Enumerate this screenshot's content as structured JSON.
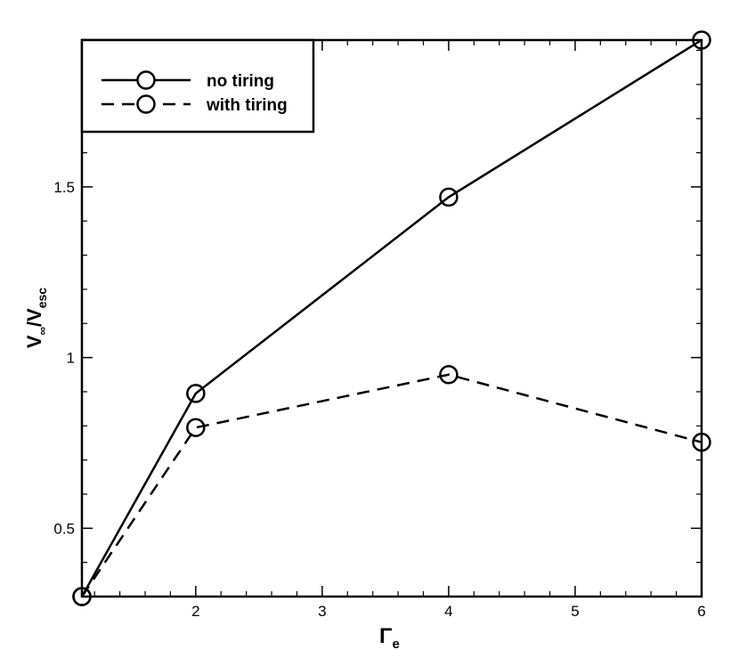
{
  "chart_data": {
    "type": "line",
    "title": "",
    "xlabel": {
      "main": "Γ",
      "sub": "e"
    },
    "ylabel": {
      "part1": "V",
      "sub1": "∞",
      "slash": "/",
      "part2": "V",
      "sub2": "esc"
    },
    "xlim": [
      1.1,
      6
    ],
    "ylim": [
      0.3,
      1.93
    ],
    "grid": false,
    "legend": "top-left",
    "x_ticks": [
      2,
      3,
      4,
      5,
      6
    ],
    "y_ticks": [
      0.5,
      1,
      1.5
    ],
    "x_tick_labels": [
      "2",
      "3",
      "4",
      "5",
      "6"
    ],
    "y_tick_labels": [
      "0.5",
      "1",
      "1.5"
    ],
    "series": [
      {
        "name": "no tiring",
        "style": "solid",
        "color": "#000000",
        "marker": "circle",
        "x": [
          1.1,
          2,
          4,
          6
        ],
        "y": [
          0.3,
          0.895,
          1.47,
          1.93
        ]
      },
      {
        "name": "with tiring",
        "style": "dashed",
        "color": "#000000",
        "marker": "circle",
        "x": [
          1.1,
          2,
          4,
          6
        ],
        "y": [
          0.3,
          0.795,
          0.95,
          0.752
        ]
      }
    ]
  }
}
